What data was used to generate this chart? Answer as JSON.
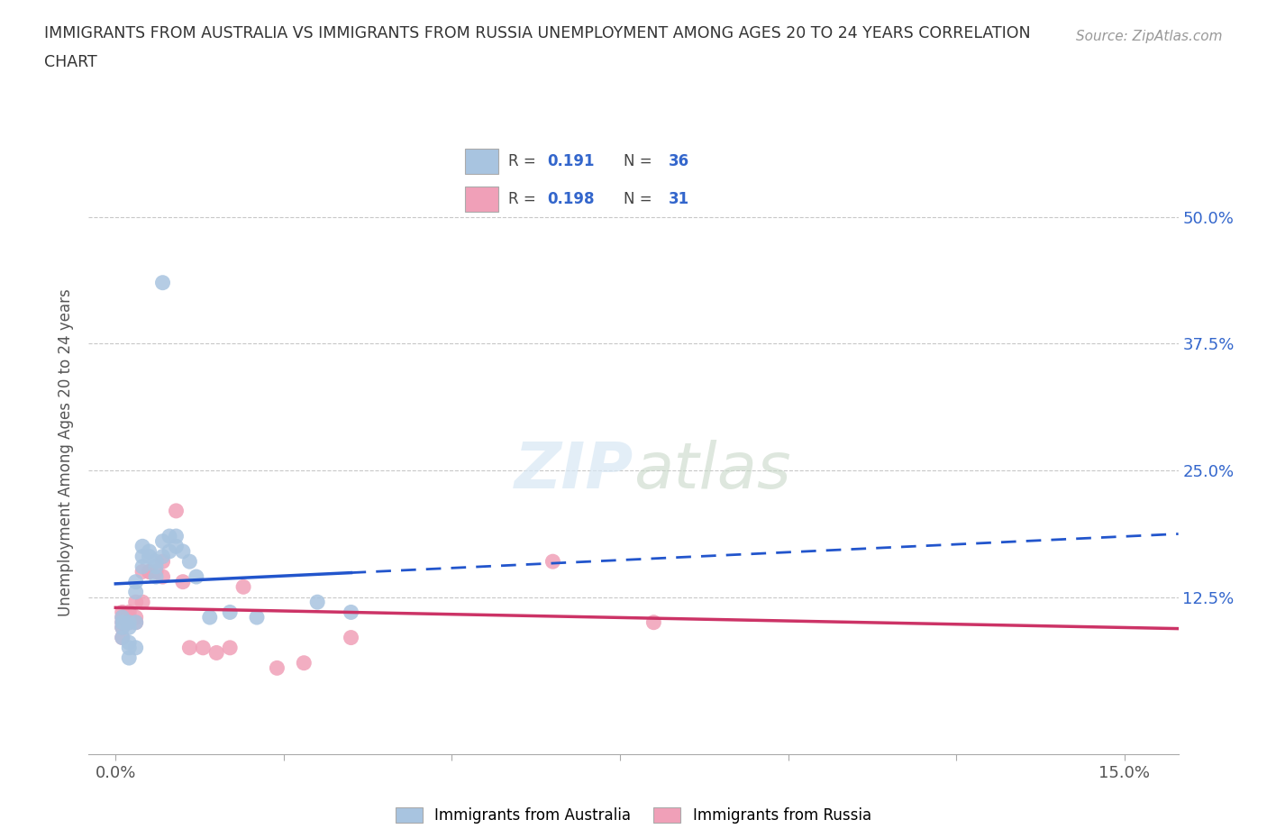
{
  "title_line1": "IMMIGRANTS FROM AUSTRALIA VS IMMIGRANTS FROM RUSSIA UNEMPLOYMENT AMONG AGES 20 TO 24 YEARS CORRELATION",
  "title_line2": "CHART",
  "source": "Source: ZipAtlas.com",
  "ylabel": "Unemployment Among Ages 20 to 24 years",
  "ytick_labels": [
    "12.5%",
    "25.0%",
    "37.5%",
    "50.0%"
  ],
  "ytick_values": [
    0.125,
    0.25,
    0.375,
    0.5
  ],
  "xtick_values": [
    0.0,
    0.025,
    0.05,
    0.075,
    0.1,
    0.125,
    0.15
  ],
  "xlim": [
    -0.004,
    0.158
  ],
  "ylim": [
    -0.03,
    0.565
  ],
  "australia_color": "#a8c4e0",
  "russia_color": "#f0a0b8",
  "trend_aus_color": "#2255cc",
  "trend_rus_color": "#cc3366",
  "R_aus": 0.191,
  "N_aus": 36,
  "R_rus": 0.198,
  "N_rus": 31,
  "aus_x": [
    0.001,
    0.001,
    0.001,
    0.001,
    0.002,
    0.002,
    0.002,
    0.002,
    0.002,
    0.003,
    0.003,
    0.003,
    0.003,
    0.004,
    0.004,
    0.004,
    0.005,
    0.005,
    0.006,
    0.006,
    0.006,
    0.007,
    0.007,
    0.008,
    0.008,
    0.009,
    0.009,
    0.01,
    0.011,
    0.012,
    0.014,
    0.017,
    0.021,
    0.03,
    0.035,
    0.007
  ],
  "aus_y": [
    0.085,
    0.095,
    0.1,
    0.105,
    0.095,
    0.1,
    0.075,
    0.065,
    0.08,
    0.1,
    0.075,
    0.13,
    0.14,
    0.155,
    0.165,
    0.175,
    0.17,
    0.165,
    0.16,
    0.155,
    0.145,
    0.165,
    0.18,
    0.17,
    0.185,
    0.175,
    0.185,
    0.17,
    0.16,
    0.145,
    0.105,
    0.11,
    0.105,
    0.12,
    0.11,
    0.435
  ],
  "rus_x": [
    0.001,
    0.001,
    0.001,
    0.001,
    0.001,
    0.002,
    0.002,
    0.002,
    0.002,
    0.003,
    0.003,
    0.003,
    0.004,
    0.004,
    0.005,
    0.005,
    0.006,
    0.007,
    0.007,
    0.009,
    0.01,
    0.011,
    0.013,
    0.015,
    0.017,
    0.019,
    0.024,
    0.028,
    0.035,
    0.065,
    0.08
  ],
  "rus_y": [
    0.085,
    0.095,
    0.1,
    0.105,
    0.11,
    0.1,
    0.105,
    0.11,
    0.1,
    0.1,
    0.12,
    0.105,
    0.12,
    0.15,
    0.15,
    0.15,
    0.15,
    0.145,
    0.16,
    0.21,
    0.14,
    0.075,
    0.075,
    0.07,
    0.075,
    0.135,
    0.055,
    0.06,
    0.085,
    0.16,
    0.1
  ],
  "watermark": "ZIPatlas",
  "bg_color": "#ffffff",
  "grid_color": "#c8c8c8",
  "axis_color": "#aaaaaa",
  "label_color_blue": "#3366cc",
  "text_color": "#555555"
}
